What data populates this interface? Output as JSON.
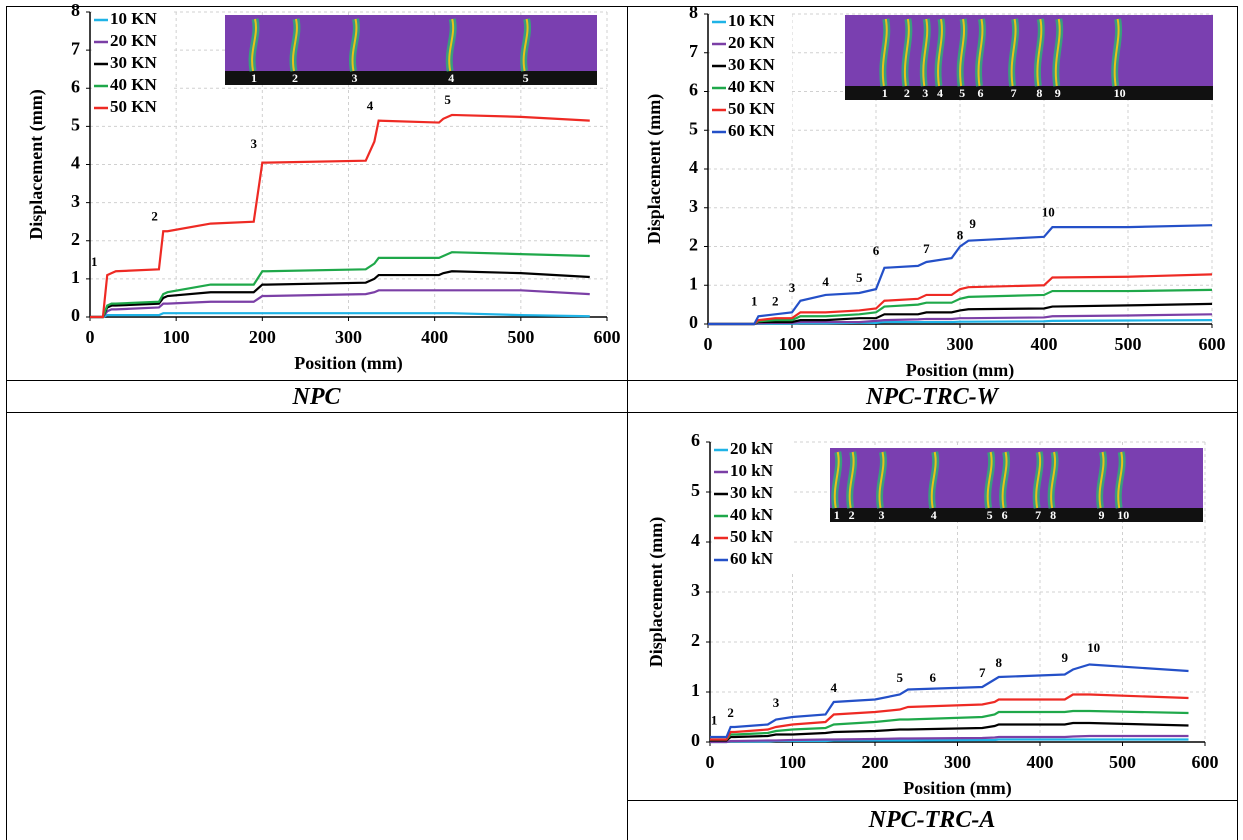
{
  "chart_data": [
    {
      "type": "line",
      "caption": "NPC",
      "x_label": "Position (mm)",
      "y_label": "Displacement (mm)",
      "xlim": [
        0,
        600
      ],
      "ylim": [
        0,
        8
      ],
      "xticks": [
        0,
        100,
        200,
        300,
        400,
        500,
        600
      ],
      "yticks": [
        0,
        1,
        2,
        3,
        4,
        5,
        6,
        7,
        8
      ],
      "grid": true,
      "legend": "upper-left",
      "x": [
        0,
        15,
        20,
        25,
        30,
        80,
        85,
        90,
        140,
        190,
        200,
        205,
        320,
        330,
        335,
        405,
        410,
        420,
        500,
        580
      ],
      "series": [
        {
          "name": "10 KN",
          "color": "#1fb3e6",
          "values": [
            0,
            0,
            0.05,
            0.05,
            0.05,
            0.05,
            0.1,
            0.1,
            0.1,
            0.1,
            0.1,
            0.1,
            0.1,
            0.1,
            0.1,
            0.1,
            0.1,
            0.1,
            0.05,
            0.02
          ]
        },
        {
          "name": "20 KN",
          "color": "#7b3fa6",
          "values": [
            0,
            0,
            0.15,
            0.2,
            0.2,
            0.25,
            0.35,
            0.35,
            0.4,
            0.4,
            0.55,
            0.55,
            0.6,
            0.65,
            0.7,
            0.7,
            0.7,
            0.7,
            0.7,
            0.6
          ]
        },
        {
          "name": "30 KN",
          "color": "#000000",
          "values": [
            0,
            0,
            0.25,
            0.3,
            0.3,
            0.35,
            0.5,
            0.55,
            0.65,
            0.65,
            0.85,
            0.85,
            0.9,
            1.0,
            1.1,
            1.1,
            1.15,
            1.2,
            1.15,
            1.05
          ]
        },
        {
          "name": "40 KN",
          "color": "#1fa84a",
          "values": [
            0,
            0,
            0.3,
            0.35,
            0.35,
            0.4,
            0.6,
            0.65,
            0.85,
            0.85,
            1.2,
            1.2,
            1.25,
            1.4,
            1.55,
            1.55,
            1.6,
            1.7,
            1.65,
            1.6
          ]
        },
        {
          "name": "50 KN",
          "color": "#ee2a24",
          "values": [
            0,
            0,
            1.1,
            1.15,
            1.2,
            1.25,
            2.25,
            2.25,
            2.45,
            2.5,
            4.05,
            4.05,
            4.1,
            4.6,
            5.15,
            5.1,
            5.2,
            5.3,
            5.25,
            5.15
          ]
        }
      ],
      "annotations": [
        {
          "text": "1",
          "x": 5,
          "y": 1.2
        },
        {
          "text": "2",
          "x": 75,
          "y": 2.4
        },
        {
          "text": "3",
          "x": 190,
          "y": 4.3
        },
        {
          "text": "4",
          "x": 325,
          "y": 5.3
        },
        {
          "text": "5",
          "x": 415,
          "y": 5.45
        }
      ],
      "photo_labels": [
        "1",
        "2",
        "3",
        "4",
        "5"
      ]
    },
    {
      "type": "line",
      "caption": "NPC-TRC-W",
      "x_label": "Position (mm)",
      "y_label": "Displacement (mm)",
      "xlim": [
        0,
        600
      ],
      "ylim": [
        0,
        8
      ],
      "xticks": [
        0,
        100,
        200,
        300,
        400,
        500,
        600
      ],
      "yticks": [
        0,
        1,
        2,
        3,
        4,
        5,
        6,
        7,
        8
      ],
      "grid": true,
      "legend": "upper-left",
      "x": [
        0,
        55,
        60,
        80,
        100,
        110,
        140,
        180,
        200,
        210,
        250,
        260,
        290,
        300,
        310,
        400,
        410,
        500,
        600
      ],
      "series": [
        {
          "name": "10 KN",
          "color": "#1fb3e6",
          "values": [
            0,
            0,
            0.01,
            0.01,
            0.01,
            0.02,
            0.02,
            0.03,
            0.03,
            0.05,
            0.05,
            0.05,
            0.05,
            0.06,
            0.06,
            0.07,
            0.08,
            0.09,
            0.1
          ]
        },
        {
          "name": "20 KN",
          "color": "#7b3fa6",
          "values": [
            0,
            0,
            0.02,
            0.03,
            0.03,
            0.05,
            0.05,
            0.05,
            0.08,
            0.1,
            0.12,
            0.13,
            0.13,
            0.15,
            0.15,
            0.17,
            0.2,
            0.22,
            0.25
          ]
        },
        {
          "name": "30 KN",
          "color": "#000000",
          "values": [
            0,
            0,
            0.05,
            0.05,
            0.05,
            0.1,
            0.1,
            0.15,
            0.15,
            0.25,
            0.25,
            0.3,
            0.3,
            0.35,
            0.38,
            0.4,
            0.45,
            0.48,
            0.52
          ]
        },
        {
          "name": "40 KN",
          "color": "#1fa84a",
          "values": [
            0,
            0,
            0.07,
            0.1,
            0.1,
            0.2,
            0.2,
            0.25,
            0.3,
            0.45,
            0.5,
            0.55,
            0.55,
            0.65,
            0.7,
            0.75,
            0.85,
            0.85,
            0.88
          ]
        },
        {
          "name": "50 KN",
          "color": "#ee2a24",
          "values": [
            0,
            0,
            0.1,
            0.15,
            0.15,
            0.3,
            0.3,
            0.35,
            0.4,
            0.6,
            0.65,
            0.75,
            0.75,
            0.9,
            0.95,
            1.0,
            1.2,
            1.22,
            1.28
          ]
        },
        {
          "name": "60 KN",
          "color": "#2450c8",
          "values": [
            0,
            0,
            0.2,
            0.25,
            0.3,
            0.6,
            0.75,
            0.8,
            0.9,
            1.45,
            1.5,
            1.6,
            1.7,
            2.0,
            2.15,
            2.25,
            2.5,
            2.5,
            2.55
          ]
        }
      ],
      "annotations": [
        {
          "text": "1",
          "x": 55,
          "y": 0.35
        },
        {
          "text": "2",
          "x": 80,
          "y": 0.35
        },
        {
          "text": "3",
          "x": 100,
          "y": 0.7
        },
        {
          "text": "4",
          "x": 140,
          "y": 0.85
        },
        {
          "text": "5",
          "x": 180,
          "y": 0.95
        },
        {
          "text": "6",
          "x": 200,
          "y": 1.65
        },
        {
          "text": "7",
          "x": 260,
          "y": 1.7
        },
        {
          "text": "8",
          "x": 300,
          "y": 2.05
        },
        {
          "text": "9",
          "x": 315,
          "y": 2.35
        },
        {
          "text": "10",
          "x": 405,
          "y": 2.65
        }
      ],
      "photo_labels": [
        "1",
        "2",
        "3",
        "4",
        "5",
        "6",
        "7",
        "8",
        "9",
        "10"
      ]
    },
    {
      "type": "line",
      "caption": "NPC-TRC-A",
      "x_label": "Position (mm)",
      "y_label": "Displacement (mm)",
      "xlim": [
        0,
        600
      ],
      "ylim": [
        0,
        6
      ],
      "xticks": [
        0,
        100,
        200,
        300,
        400,
        500,
        600
      ],
      "yticks": [
        0,
        1,
        2,
        3,
        4,
        5,
        6
      ],
      "grid": true,
      "legend": "upper-left",
      "x": [
        0,
        20,
        25,
        30,
        70,
        80,
        100,
        140,
        150,
        200,
        230,
        240,
        330,
        345,
        350,
        430,
        440,
        460,
        580
      ],
      "series": [
        {
          "name": "20 kN",
          "color": "#1fb3e6",
          "values": [
            0,
            0,
            0.01,
            0.01,
            0.01,
            0.02,
            0.02,
            0.02,
            0.03,
            0.03,
            0.03,
            0.03,
            0.04,
            0.04,
            0.05,
            0.05,
            0.05,
            0.05,
            0.05
          ]
        },
        {
          "name": "10 kN",
          "color": "#7b3fa6",
          "values": [
            0,
            0,
            0.02,
            0.02,
            0.03,
            0.03,
            0.04,
            0.05,
            0.05,
            0.06,
            0.07,
            0.07,
            0.08,
            0.09,
            0.1,
            0.1,
            0.11,
            0.12,
            0.12
          ]
        },
        {
          "name": "30 kN",
          "color": "#000000",
          "values": [
            0.03,
            0.03,
            0.1,
            0.1,
            0.12,
            0.15,
            0.15,
            0.18,
            0.2,
            0.22,
            0.25,
            0.25,
            0.28,
            0.32,
            0.35,
            0.35,
            0.38,
            0.38,
            0.33
          ]
        },
        {
          "name": "40 kN",
          "color": "#1fa84a",
          "values": [
            0.05,
            0.05,
            0.15,
            0.15,
            0.18,
            0.22,
            0.25,
            0.28,
            0.35,
            0.4,
            0.45,
            0.45,
            0.5,
            0.55,
            0.6,
            0.6,
            0.62,
            0.62,
            0.58
          ]
        },
        {
          "name": "50 kN",
          "color": "#ee2a24",
          "values": [
            0.05,
            0.05,
            0.2,
            0.2,
            0.25,
            0.3,
            0.35,
            0.4,
            0.55,
            0.6,
            0.65,
            0.7,
            0.75,
            0.8,
            0.85,
            0.85,
            0.95,
            0.95,
            0.88
          ]
        },
        {
          "name": "60 kN",
          "color": "#2450c8",
          "values": [
            0.1,
            0.1,
            0.3,
            0.3,
            0.35,
            0.45,
            0.5,
            0.55,
            0.8,
            0.85,
            0.95,
            1.05,
            1.1,
            1.25,
            1.3,
            1.35,
            1.45,
            1.55,
            1.42
          ]
        }
      ],
      "annotations": [
        {
          "text": "1",
          "x": 5,
          "y": 0.25
        },
        {
          "text": "2",
          "x": 25,
          "y": 0.4
        },
        {
          "text": "3",
          "x": 80,
          "y": 0.6
        },
        {
          "text": "4",
          "x": 150,
          "y": 0.9
        },
        {
          "text": "5",
          "x": 230,
          "y": 1.1
        },
        {
          "text": "6",
          "x": 270,
          "y": 1.1
        },
        {
          "text": "7",
          "x": 330,
          "y": 1.2
        },
        {
          "text": "8",
          "x": 350,
          "y": 1.4
        },
        {
          "text": "9",
          "x": 430,
          "y": 1.5
        },
        {
          "text": "10",
          "x": 465,
          "y": 1.7
        }
      ],
      "photo_labels": [
        "1",
        "2",
        "3",
        "4",
        "5",
        "6",
        "7",
        "8",
        "9",
        "10"
      ]
    }
  ]
}
